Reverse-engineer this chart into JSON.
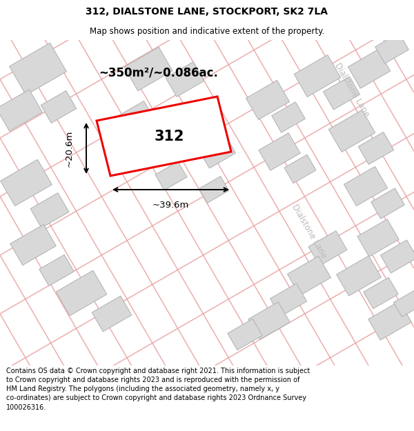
{
  "title": "312, DIALSTONE LANE, STOCKPORT, SK2 7LA",
  "subtitle": "Map shows position and indicative extent of the property.",
  "footer": "Contains OS data © Crown copyright and database right 2021. This information is subject\nto Crown copyright and database rights 2023 and is reproduced with the permission of\nHM Land Registry. The polygons (including the associated geometry, namely x, y\nco-ordinates) are subject to Crown copyright and database rights 2023 Ordnance Survey\n100026316.",
  "area_label": "~350m²/~0.086ac.",
  "plot_number": "312",
  "width_label": "~39.6m",
  "height_label": "~20.6m",
  "road_label_1": "Dialstone Lane",
  "road_label_2": "Dialstone Lane",
  "title_fontsize": 10,
  "subtitle_fontsize": 8.5,
  "footer_fontsize": 7.0,
  "road_color": "#e8a0a0",
  "building_fill": "#d8d8d8",
  "building_edge": "#b0b0b0",
  "highlight_stroke": "#ee0000",
  "map_bg": "#ffffff"
}
